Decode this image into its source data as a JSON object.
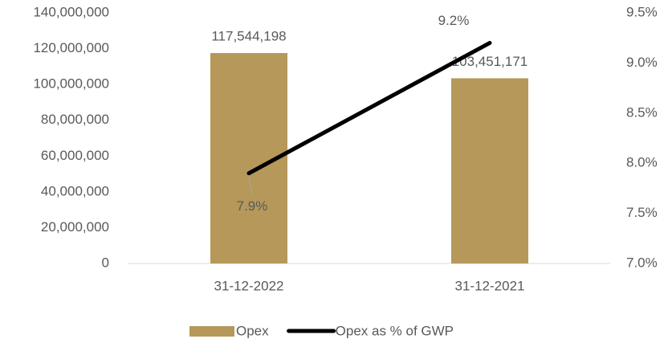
{
  "chart_data": {
    "type": "bar",
    "categories": [
      "31-12-2022",
      "31-12-2021"
    ],
    "series": [
      {
        "name": "Opex",
        "type": "bar",
        "color": "#b5985a",
        "values": [
          117544198,
          103451171
        ],
        "value_labels": [
          "117,544,198",
          "103,451,171"
        ]
      },
      {
        "name": "Opex as % of GWP",
        "type": "line",
        "axis": "y2",
        "color": "#000000",
        "values": [
          7.9,
          9.2
        ],
        "value_labels": [
          "7.9%",
          "9.2%"
        ]
      }
    ],
    "ylim": [
      0,
      140000000
    ],
    "yticks": [
      0,
      {
        "value": 20000000,
        "label": "20,000,000"
      },
      {
        "value": 40000000,
        "label": "40,000,000"
      },
      {
        "value": 60000000,
        "label": "60,000,000"
      },
      {
        "value": 80000000,
        "label": "80,000,000"
      },
      {
        "value": 100000000,
        "label": "100,000,000"
      },
      {
        "value": 120000000,
        "label": "120,000,000"
      },
      {
        "value": 140000000,
        "label": "140,000,000"
      }
    ],
    "y2lim": [
      7.0,
      9.5
    ],
    "y2ticks": [
      {
        "value": 7.0,
        "label": "7.0%"
      },
      {
        "value": 7.5,
        "label": "7.5%"
      },
      {
        "value": 8.0,
        "label": "8.0%"
      },
      {
        "value": 8.5,
        "label": "8.5%"
      },
      {
        "value": 9.0,
        "label": "9.0%"
      },
      {
        "value": 9.5,
        "label": "9.5%"
      }
    ],
    "legend": "bottom"
  }
}
